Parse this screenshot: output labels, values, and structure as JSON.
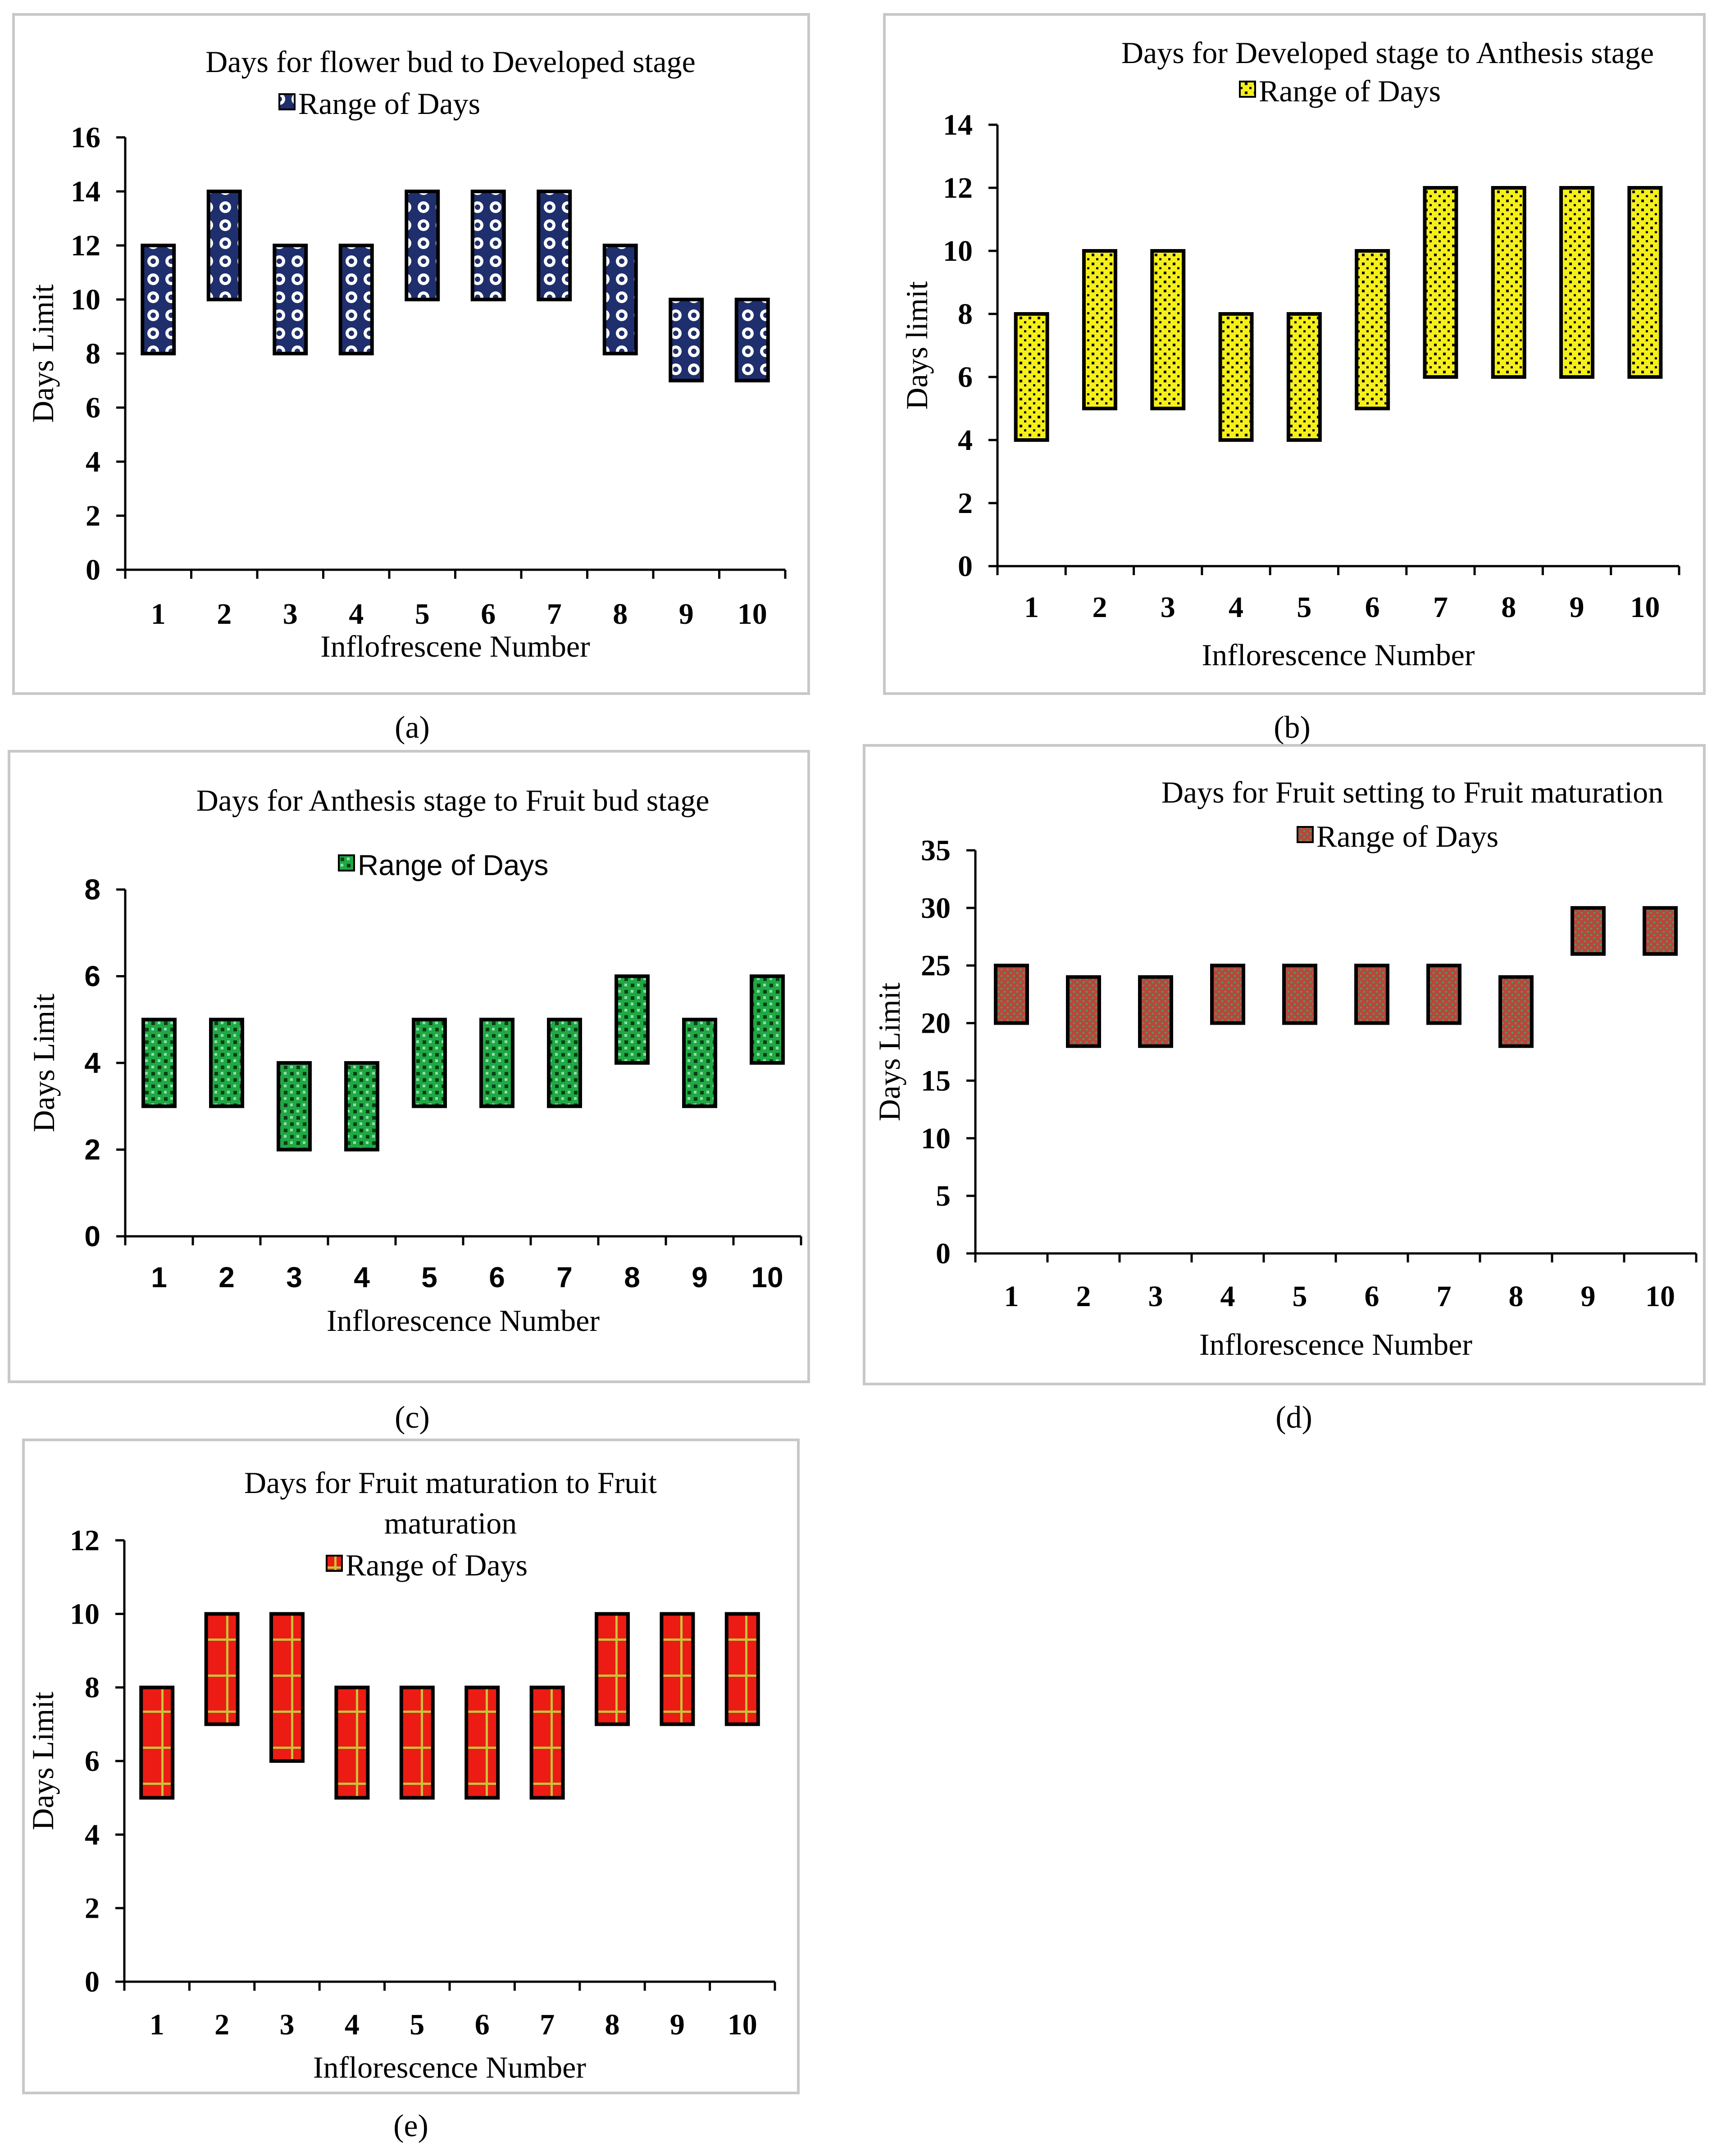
{
  "figure": {
    "captions": [
      "(a)",
      "(b)",
      "(c)",
      "(d)",
      "(e)"
    ]
  },
  "chart_data": [
    {
      "type": "floating-bar",
      "panel": "a",
      "title": "Days for flower bud to Developed stage",
      "title_lines": [
        "Days for flower bud to Developed stage"
      ],
      "legend": "Range of Days",
      "xlabel": "Inflofrescene Number",
      "ylabel": "Days Limit",
      "categories": [
        "1",
        "2",
        "3",
        "4",
        "5",
        "6",
        "7",
        "8",
        "9",
        "10"
      ],
      "low": [
        8,
        10,
        8,
        8,
        10,
        10,
        10,
        8,
        7,
        7
      ],
      "high": [
        12,
        14,
        12,
        12,
        14,
        14,
        14,
        12,
        10,
        10
      ],
      "ylim": [
        0,
        16
      ],
      "yticks": [
        0,
        2,
        4,
        6,
        8,
        10,
        12,
        14,
        16
      ],
      "ytick_labels": [
        "0",
        "2",
        "4",
        "6",
        "8",
        "10",
        "12",
        "14",
        "16"
      ],
      "pattern": "circles-navy",
      "fill_color": "#1f2f6e"
    },
    {
      "type": "floating-bar",
      "panel": "b",
      "title": "Days for Developed stage to Anthesis stage",
      "title_lines": [
        "Days for Developed stage to Anthesis stage"
      ],
      "legend": "Range of Days",
      "xlabel": "Inflorescence Number",
      "ylabel": "Days  limit",
      "categories": [
        "1",
        "2",
        "3",
        "4",
        "5",
        "6",
        "7",
        "8",
        "9",
        "10"
      ],
      "low": [
        4,
        5,
        5,
        4,
        4,
        5,
        6,
        6,
        6,
        6
      ],
      "high": [
        8,
        10,
        10,
        8,
        8,
        10,
        12,
        12,
        12,
        12
      ],
      "ylim": [
        0,
        14
      ],
      "yticks": [
        0,
        2,
        4,
        6,
        8,
        10,
        12,
        14
      ],
      "ytick_labels": [
        "0",
        "2",
        "4",
        "6",
        "8",
        "10",
        "12",
        "14"
      ],
      "pattern": "dots-yellow",
      "fill_color": "#f5ef1a"
    },
    {
      "type": "floating-bar",
      "panel": "c",
      "title": "Days for Anthesis stage to  Fruit bud stage",
      "title_lines": [
        "Days for Anthesis stage to  Fruit bud stage"
      ],
      "legend": "Range of Days",
      "xlabel": "Inflorescence Number",
      "ylabel": "Days Limit",
      "categories": [
        "1",
        "2",
        "3",
        "4",
        "5",
        "6",
        "7",
        "8",
        "9",
        "10"
      ],
      "low": [
        3,
        3,
        2,
        2,
        3,
        3,
        3,
        4,
        3,
        4
      ],
      "high": [
        5,
        5,
        4,
        4,
        5,
        5,
        5,
        6,
        5,
        6
      ],
      "ylim": [
        0,
        8
      ],
      "yticks": [
        0,
        2,
        4,
        6,
        8
      ],
      "ytick_labels": [
        "0",
        "2",
        "4",
        "6",
        "8"
      ],
      "pattern": "checker-green",
      "fill_color": "#1fa844"
    },
    {
      "type": "floating-bar",
      "panel": "d",
      "title": "Days for Fruit setting to Fruit maturation",
      "title_lines": [
        "Days for Fruit setting to Fruit maturation"
      ],
      "legend": "Range of Days",
      "xlabel": "Inflorescence Number",
      "ylabel": "Days Limit",
      "categories": [
        "1",
        "2",
        "3",
        "4",
        "5",
        "6",
        "7",
        "8",
        "9",
        "10"
      ],
      "low": [
        20,
        18,
        18,
        20,
        20,
        20,
        20,
        18,
        26,
        26
      ],
      "high": [
        25,
        24,
        24,
        25,
        25,
        25,
        25,
        24,
        30,
        30
      ],
      "ylim": [
        0,
        35
      ],
      "yticks": [
        0,
        5,
        10,
        15,
        20,
        25,
        30,
        35
      ],
      "ytick_labels": [
        "0",
        "5",
        "10",
        "15",
        "20",
        "25",
        "30",
        "35"
      ],
      "pattern": "dots-brown",
      "fill_color": "#a8413a"
    },
    {
      "type": "floating-bar",
      "panel": "e",
      "title": "Days for Fruit maturation  to Fruit maturation",
      "title_lines": [
        "Days for Fruit maturation  to Fruit",
        "maturation"
      ],
      "legend": "Range of Days",
      "xlabel": "Inflorescence Number",
      "ylabel": "Days Limit",
      "categories": [
        "1",
        "2",
        "3",
        "4",
        "5",
        "6",
        "7",
        "8",
        "9",
        "10"
      ],
      "low": [
        5,
        7,
        6,
        5,
        5,
        5,
        5,
        7,
        7,
        7
      ],
      "high": [
        8,
        10,
        10,
        8,
        8,
        8,
        8,
        10,
        10,
        10
      ],
      "ylim": [
        0,
        12
      ],
      "yticks": [
        0,
        2,
        4,
        6,
        8,
        10,
        12
      ],
      "ytick_labels": [
        "0",
        "2",
        "4",
        "6",
        "8",
        "10",
        "12"
      ],
      "pattern": "grid-red",
      "fill_color": "#e8201a"
    }
  ]
}
